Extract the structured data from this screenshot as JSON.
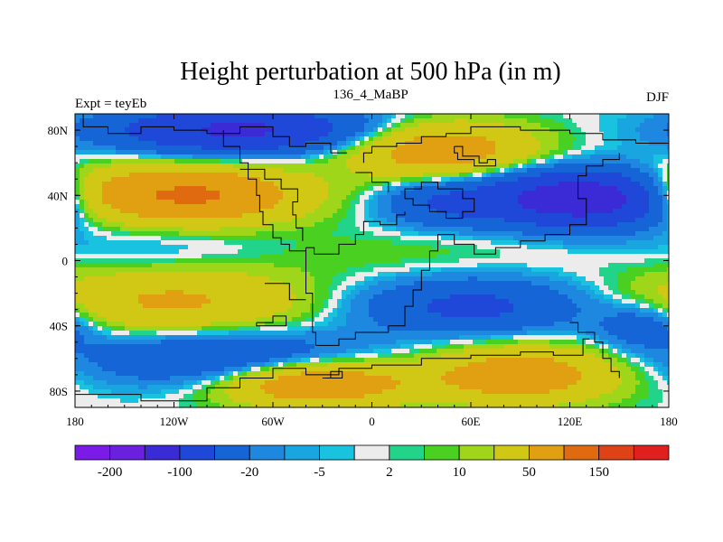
{
  "chart_data": {
    "type": "heatmap",
    "title": "Height perturbation at 500 hPa (in m)",
    "left_label": "Expt = teyEb",
    "center_label": "136_4_MaBP",
    "right_label": "DJF",
    "xlim": [
      -180,
      180
    ],
    "ylim": [
      -90,
      90
    ],
    "x_ticks": [
      {
        "value": -180,
        "label": "180"
      },
      {
        "value": -120,
        "label": "120W"
      },
      {
        "value": -60,
        "label": "60W"
      },
      {
        "value": 0,
        "label": "0"
      },
      {
        "value": 60,
        "label": "60E"
      },
      {
        "value": 120,
        "label": "120E"
      },
      {
        "value": 180,
        "label": "180"
      }
    ],
    "y_ticks": [
      {
        "value": 80,
        "label": "80N"
      },
      {
        "value": 40,
        "label": "40N"
      },
      {
        "value": 0,
        "label": "0"
      },
      {
        "value": -40,
        "label": "40S"
      },
      {
        "value": -80,
        "label": "80S"
      }
    ],
    "levels": [
      -200,
      -150,
      -100,
      -50,
      -20,
      -10,
      -5,
      -2,
      2,
      5,
      10,
      20,
      50,
      100,
      150,
      200
    ],
    "colorbar_labels": [
      {
        "index": 1,
        "label": "-200"
      },
      {
        "index": 3,
        "label": "-100"
      },
      {
        "index": 5,
        "label": "-20"
      },
      {
        "index": 7,
        "label": "-5"
      },
      {
        "index": 9,
        "label": "2"
      },
      {
        "index": 11,
        "label": "10"
      },
      {
        "index": 13,
        "label": "50"
      },
      {
        "index": 15,
        "label": "150"
      }
    ],
    "colors": [
      "#7b1be8",
      "#6a20de",
      "#3a2bd6",
      "#1f47d8",
      "#1565d6",
      "#1e88e0",
      "#19a6e0",
      "#19c2de",
      "#ececec",
      "#22d48a",
      "#4ad021",
      "#a0d619",
      "#d0c815",
      "#e0a012",
      "#e06a10",
      "#e04218",
      "#e0201e"
    ],
    "anomaly_centers": [
      {
        "lon": -110,
        "lat": 40,
        "value": 110,
        "sx": 45,
        "sy": 12
      },
      {
        "lon": -80,
        "lat": 80,
        "value": -110,
        "sx": 55,
        "sy": 10
      },
      {
        "lon": -170,
        "lat": 40,
        "value": 50,
        "sx": 25,
        "sy": 12
      },
      {
        "lon": 40,
        "lat": 68,
        "value": 80,
        "sx": 40,
        "sy": 12
      },
      {
        "lon": 130,
        "lat": 38,
        "value": -150,
        "sx": 45,
        "sy": 12
      },
      {
        "lon": 40,
        "lat": 35,
        "value": -40,
        "sx": 25,
        "sy": 10
      },
      {
        "lon": -130,
        "lat": 8,
        "value": -10,
        "sx": 45,
        "sy": 10
      },
      {
        "lon": 20,
        "lat": 5,
        "value": 8,
        "sx": 60,
        "sy": 10
      },
      {
        "lon": -120,
        "lat": -25,
        "value": 55,
        "sx": 60,
        "sy": 14
      },
      {
        "lon": 60,
        "lat": -28,
        "value": -60,
        "sx": 50,
        "sy": 12
      },
      {
        "lon": -90,
        "lat": -60,
        "value": -55,
        "sx": 60,
        "sy": 12
      },
      {
        "lon": -35,
        "lat": -75,
        "value": 95,
        "sx": 40,
        "sy": 10
      },
      {
        "lon": 90,
        "lat": -70,
        "value": 80,
        "sx": 40,
        "sy": 12
      },
      {
        "lon": 165,
        "lat": -40,
        "value": -40,
        "sx": 20,
        "sy": 10
      }
    ]
  }
}
